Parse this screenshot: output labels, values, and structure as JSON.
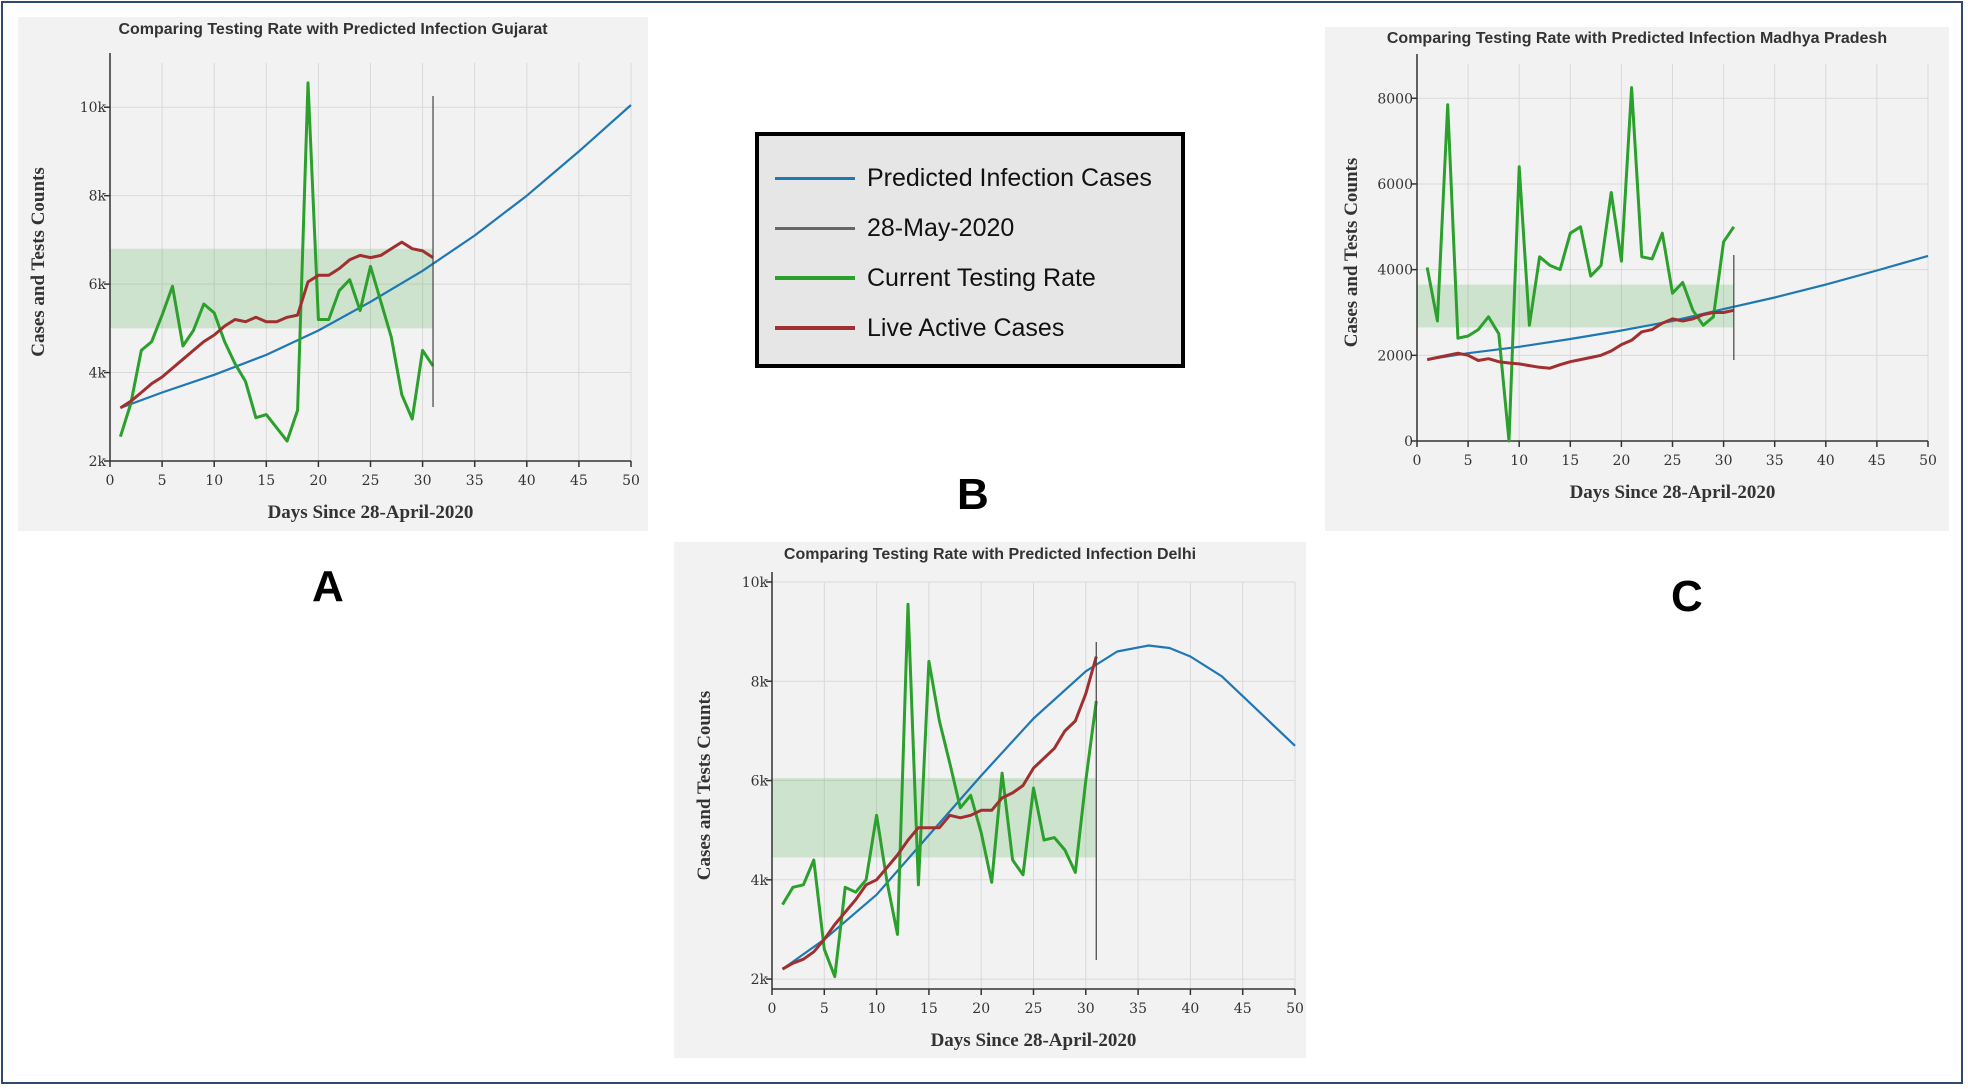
{
  "legend": {
    "items": [
      {
        "label": "Predicted Infection Cases",
        "color": "#1f77b4"
      },
      {
        "label": "28-May-2020",
        "color": "#666666"
      },
      {
        "label": "Current Testing Rate",
        "color": "#2ca02c"
      },
      {
        "label": "Live Active Cases",
        "color": "#a03030"
      }
    ]
  },
  "labels": {
    "a": "A",
    "b": "B",
    "c": "C"
  },
  "chart_data": [
    {
      "type": "line",
      "title": "Comparing Testing Rate with Predicted Infection Gujarat",
      "xlabel": "Days Since 28-April-2020",
      "ylabel": "Cases and Tests Counts",
      "xlim": [
        0,
        50
      ],
      "ylim": [
        2000,
        11000
      ],
      "xticks": [
        0,
        5,
        10,
        15,
        20,
        25,
        30,
        35,
        40,
        45,
        50
      ],
      "xtick_labels": [
        "0",
        "5",
        "10",
        "15",
        "20",
        "25",
        "30",
        "35",
        "40",
        "45",
        "50"
      ],
      "yticks": [
        2000,
        4000,
        6000,
        8000,
        10000
      ],
      "ytick_labels": [
        "2k",
        "4k",
        "6k",
        "8k",
        "10k"
      ],
      "grid": true,
      "vline_x": 31,
      "band": {
        "x": [
          0,
          31
        ],
        "y": [
          5000,
          6800
        ]
      },
      "series": [
        {
          "name": "Predicted Infection Cases",
          "color": "#1f77b4",
          "x": [
            1,
            5,
            10,
            15,
            20,
            25,
            30,
            35,
            40,
            45,
            50
          ],
          "y": [
            3200,
            3550,
            3950,
            4400,
            4950,
            5600,
            6300,
            7100,
            8000,
            9000,
            10050
          ]
        },
        {
          "name": "Current Testing Rate",
          "color": "#2ca02c",
          "x": [
            1,
            2,
            3,
            4,
            5,
            6,
            7,
            8,
            9,
            10,
            11,
            12,
            13,
            14,
            15,
            16,
            17,
            18,
            19,
            20,
            21,
            22,
            23,
            24,
            25,
            26,
            27,
            28,
            29,
            30,
            31
          ],
          "y": [
            2550,
            3300,
            4500,
            4700,
            5300,
            5950,
            4600,
            4950,
            5550,
            5350,
            4700,
            4200,
            3800,
            2980,
            3050,
            2750,
            2450,
            3150,
            10550,
            5200,
            5200,
            5850,
            6100,
            5400,
            6400,
            5600,
            4800,
            3500,
            2950,
            4500,
            4150
          ]
        },
        {
          "name": "Live Active Cases",
          "color": "#a03030",
          "x": [
            1,
            2,
            3,
            4,
            5,
            6,
            7,
            8,
            9,
            10,
            11,
            12,
            13,
            14,
            15,
            16,
            17,
            18,
            19,
            20,
            21,
            22,
            23,
            24,
            25,
            26,
            27,
            28,
            29,
            30,
            31
          ],
          "y": [
            3200,
            3350,
            3550,
            3750,
            3900,
            4100,
            4300,
            4500,
            4700,
            4850,
            5050,
            5200,
            5150,
            5250,
            5150,
            5150,
            5250,
            5300,
            6050,
            6200,
            6200,
            6350,
            6550,
            6650,
            6600,
            6650,
            6800,
            6950,
            6800,
            6750,
            6600
          ]
        }
      ]
    },
    {
      "type": "line",
      "title": "Comparing Testing Rate with Predicted Infection Madhya Pradesh",
      "xlabel": "Days Since 28-April-2020",
      "ylabel": "Cases and Tests Counts",
      "xlim": [
        0,
        50
      ],
      "ylim": [
        0,
        8800
      ],
      "xticks": [
        0,
        5,
        10,
        15,
        20,
        25,
        30,
        35,
        40,
        45,
        50
      ],
      "xtick_labels": [
        "0",
        "5",
        "10",
        "15",
        "20",
        "25",
        "30",
        "35",
        "40",
        "45",
        "50"
      ],
      "yticks": [
        0,
        2000,
        4000,
        6000,
        8000
      ],
      "ytick_labels": [
        "0",
        "2000",
        "4000",
        "6000",
        "8000"
      ],
      "grid": true,
      "vline_x": 31,
      "band": {
        "x": [
          0,
          31
        ],
        "y": [
          2650,
          3650
        ]
      },
      "series": [
        {
          "name": "Predicted Infection Cases",
          "color": "#1f77b4",
          "x": [
            1,
            5,
            10,
            15,
            20,
            25,
            30,
            35,
            40,
            45,
            50
          ],
          "y": [
            1900,
            2050,
            2200,
            2380,
            2580,
            2800,
            3080,
            3350,
            3650,
            3980,
            4320
          ]
        },
        {
          "name": "Current Testing Rate",
          "color": "#2ca02c",
          "x": [
            1,
            2,
            3,
            4,
            5,
            6,
            7,
            8,
            9,
            10,
            11,
            12,
            13,
            14,
            15,
            16,
            17,
            18,
            19,
            20,
            21,
            22,
            23,
            24,
            25,
            26,
            27,
            28,
            29,
            30,
            31
          ],
          "y": [
            4050,
            2800,
            7850,
            2400,
            2450,
            2600,
            2900,
            2500,
            0,
            6400,
            2700,
            4300,
            4100,
            4000,
            4850,
            5000,
            3850,
            4100,
            5800,
            4200,
            8250,
            4300,
            4250,
            4850,
            3450,
            3700,
            3050,
            2700,
            2900,
            4650,
            5000
          ]
        },
        {
          "name": "Live Active Cases",
          "color": "#a03030",
          "x": [
            1,
            2,
            3,
            4,
            5,
            6,
            7,
            8,
            9,
            10,
            11,
            12,
            13,
            14,
            15,
            16,
            17,
            18,
            19,
            20,
            21,
            22,
            23,
            24,
            25,
            26,
            27,
            28,
            29,
            30,
            31
          ],
          "y": [
            1900,
            1950,
            2000,
            2050,
            2000,
            1880,
            1920,
            1850,
            1820,
            1800,
            1760,
            1720,
            1700,
            1780,
            1850,
            1900,
            1950,
            2000,
            2100,
            2250,
            2350,
            2550,
            2600,
            2750,
            2850,
            2800,
            2850,
            2950,
            3000,
            3000,
            3050
          ]
        }
      ]
    },
    {
      "type": "line",
      "title": "Comparing Testing Rate with Predicted Infection Delhi",
      "xlabel": "Days Since 28-April-2020",
      "ylabel": "Cases and Tests Counts",
      "xlim": [
        0,
        50
      ],
      "ylim": [
        1800,
        10000
      ],
      "xticks": [
        0,
        5,
        10,
        15,
        20,
        25,
        30,
        35,
        40,
        45,
        50
      ],
      "xtick_labels": [
        "0",
        "5",
        "10",
        "15",
        "20",
        "25",
        "30",
        "35",
        "40",
        "45",
        "50"
      ],
      "yticks": [
        2000,
        4000,
        6000,
        8000,
        10000
      ],
      "ytick_labels": [
        "2k",
        "4k",
        "6k",
        "8k",
        "10k"
      ],
      "grid": true,
      "vline_x": 31,
      "band": {
        "x": [
          0,
          31
        ],
        "y": [
          4450,
          6050
        ]
      },
      "series": [
        {
          "name": "Predicted Infection Cases",
          "color": "#1f77b4",
          "x": [
            1,
            5,
            10,
            15,
            20,
            25,
            30,
            33,
            36,
            38,
            40,
            43,
            46,
            50
          ],
          "y": [
            2200,
            2800,
            3700,
            4900,
            6100,
            7250,
            8200,
            8600,
            8720,
            8670,
            8500,
            8100,
            7500,
            6700
          ]
        },
        {
          "name": "Current Testing Rate",
          "color": "#2ca02c",
          "x": [
            1,
            2,
            3,
            4,
            5,
            6,
            7,
            8,
            9,
            10,
            11,
            12,
            13,
            14,
            15,
            16,
            17,
            18,
            19,
            20,
            21,
            22,
            23,
            24,
            25,
            26,
            27,
            28,
            29,
            30,
            31
          ],
          "y": [
            3500,
            3850,
            3900,
            4400,
            2600,
            2050,
            3850,
            3750,
            4000,
            5300,
            3950,
            2900,
            9550,
            3900,
            8400,
            7200,
            6350,
            5450,
            5700,
            4950,
            3950,
            6150,
            4400,
            4100,
            5850,
            4800,
            4850,
            4600,
            4150,
            6000,
            7600
          ]
        },
        {
          "name": "Live Active Cases",
          "color": "#a03030",
          "x": [
            1,
            2,
            3,
            4,
            5,
            6,
            7,
            8,
            9,
            10,
            11,
            12,
            13,
            14,
            15,
            16,
            17,
            18,
            19,
            20,
            21,
            22,
            23,
            24,
            25,
            26,
            27,
            28,
            29,
            30,
            31
          ],
          "y": [
            2200,
            2320,
            2400,
            2550,
            2800,
            3100,
            3350,
            3600,
            3900,
            4000,
            4250,
            4500,
            4800,
            5050,
            5050,
            5050,
            5300,
            5250,
            5300,
            5400,
            5400,
            5650,
            5750,
            5900,
            6250,
            6450,
            6650,
            7000,
            7200,
            7750,
            8500
          ]
        }
      ]
    }
  ]
}
